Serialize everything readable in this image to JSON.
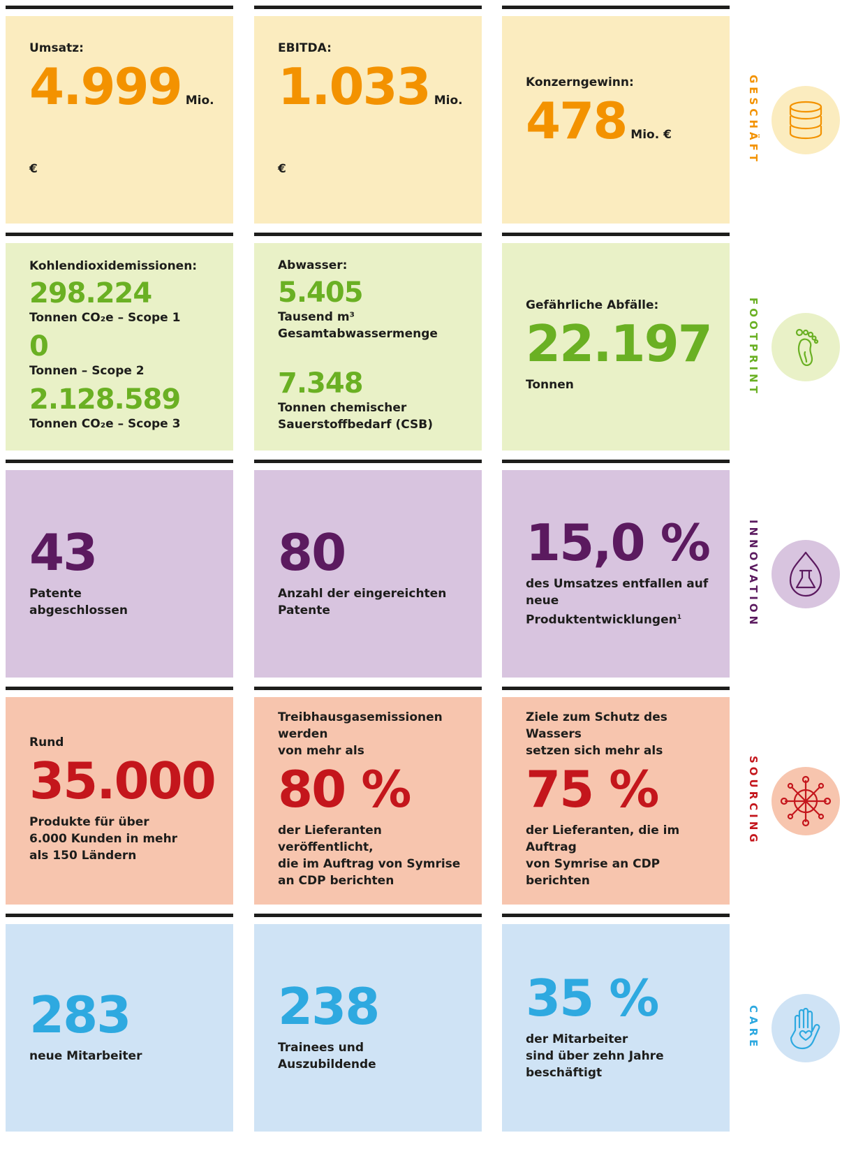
{
  "rows": [
    {
      "label": "GESCHÄFT",
      "cells": [
        {
          "caption": [
            "Umsatz:"
          ],
          "blocks": [
            {
              "value": "4.999",
              "unit": "Mio. €"
            }
          ]
        },
        {
          "caption": [
            "EBITDA:"
          ],
          "blocks": [
            {
              "value": "1.033",
              "unit": "Mio. €"
            }
          ]
        },
        {
          "caption": [
            "Konzerngewinn:"
          ],
          "blocks": [
            {
              "value": "478",
              "unit": "Mio. €"
            }
          ]
        }
      ]
    },
    {
      "label": "FOOTPRINT",
      "cells": [
        {
          "caption": [
            "Kohlendioxidemissionen:"
          ],
          "blocks": [
            {
              "value": "298.224",
              "lines": [
                "Tonnen CO₂e – Scope 1"
              ]
            },
            {
              "value": "0",
              "lines": [
                "Tonnen – Scope 2"
              ]
            },
            {
              "value": "2.128.589",
              "lines": [
                "Tonnen CO₂e – Scope 3"
              ]
            }
          ]
        },
        {
          "caption": [
            "Abwasser:"
          ],
          "blocks": [
            {
              "value": "5.405",
              "lines": [
                "Tausend m³",
                "Gesamtabwassermenge"
              ]
            },
            {
              "value": "7.348",
              "lines": [
                "Tonnen chemischer",
                "Sauerstoffbedarf (CSB)"
              ]
            }
          ]
        },
        {
          "caption": [
            "Gefährliche Abfälle:"
          ],
          "blocks": [
            {
              "value": "22.197",
              "lines": [
                "Tonnen"
              ]
            }
          ]
        }
      ]
    },
    {
      "label": "INNOVATION",
      "cells": [
        {
          "blocks": [
            {
              "value": "43",
              "lines": [
                "Patente",
                "abgeschlossen"
              ]
            }
          ]
        },
        {
          "blocks": [
            {
              "value": "80",
              "lines": [
                "Anzahl der eingereichten",
                "Patente"
              ]
            }
          ]
        },
        {
          "blocks": [
            {
              "value": "15,0 %",
              "lines": [
                "des Umsatzes entfallen auf",
                "neue Produktentwicklungen"
              ],
              "footnote": "1"
            }
          ]
        }
      ]
    },
    {
      "label": "SOURCING",
      "cells": [
        {
          "caption": [
            "Rund"
          ],
          "blocks": [
            {
              "value": "35.000",
              "lines": [
                "Produkte für über",
                "6.000 Kunden in mehr",
                "als 150 Ländern"
              ]
            }
          ]
        },
        {
          "caption": [
            "Treibhausgasemissionen werden",
            "von mehr als"
          ],
          "blocks": [
            {
              "value": "80 %",
              "lines": [
                "der Lieferanten veröffentlicht,",
                "die im Auftrag von Symrise",
                "an CDP berichten"
              ]
            }
          ]
        },
        {
          "caption": [
            "Ziele zum Schutz des Wassers",
            "setzen sich mehr als"
          ],
          "blocks": [
            {
              "value": "75 %",
              "lines": [
                "der Lieferanten, die im Auftrag",
                "von Symrise an CDP berichten"
              ]
            }
          ]
        }
      ]
    },
    {
      "label": "CARE",
      "cells": [
        {
          "blocks": [
            {
              "value": "283",
              "lines": [
                "neue Mitarbeiter"
              ]
            }
          ]
        },
        {
          "blocks": [
            {
              "value": "238",
              "lines": [
                "Trainees und",
                "Auszubildende"
              ]
            }
          ]
        },
        {
          "blocks": [
            {
              "value": "35 %",
              "lines": [
                "der Mitarbeiter",
                "sind über zehn Jahre",
                "beschäftigt"
              ]
            }
          ]
        }
      ]
    }
  ]
}
